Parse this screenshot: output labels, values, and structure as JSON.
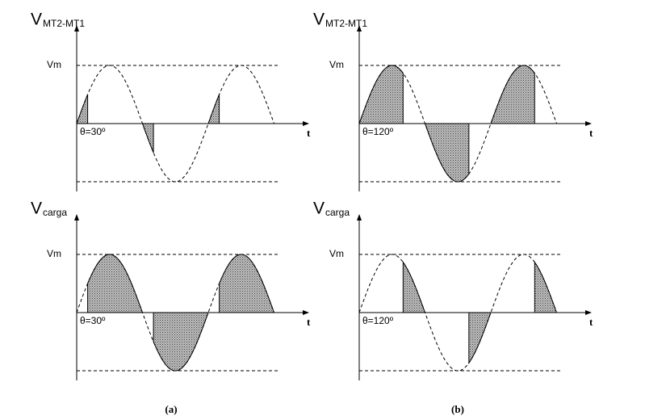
{
  "panels": [
    {
      "y_label": "V",
      "y_label_sub": "MT2-MT1",
      "peak_label": "Vm",
      "x_label": "t",
      "angle_label": "θ=30º"
    },
    {
      "y_label": "V",
      "y_label_sub": "MT2-MT1",
      "peak_label": "Vm",
      "x_label": "t",
      "angle_label": "θ=120º"
    },
    {
      "y_label": "V",
      "y_label_sub": "carga",
      "peak_label": "Vm",
      "x_label": "t",
      "angle_label": "θ=30º"
    },
    {
      "y_label": "V",
      "y_label_sub": "carga",
      "peak_label": "Vm",
      "x_label": "t",
      "angle_label": "θ=120º"
    }
  ],
  "captions": [
    "(a)",
    "(b)"
  ]
}
